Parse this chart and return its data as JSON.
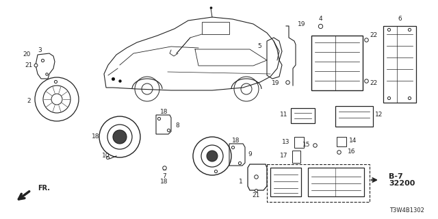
{
  "background_color": "#ffffff",
  "line_color": "#222222",
  "diagram_code": "T3W4B1302",
  "ref_code_line1": "B-7",
  "ref_code_line2": "32200",
  "fig_width": 6.4,
  "fig_height": 3.2,
  "dpi": 100
}
